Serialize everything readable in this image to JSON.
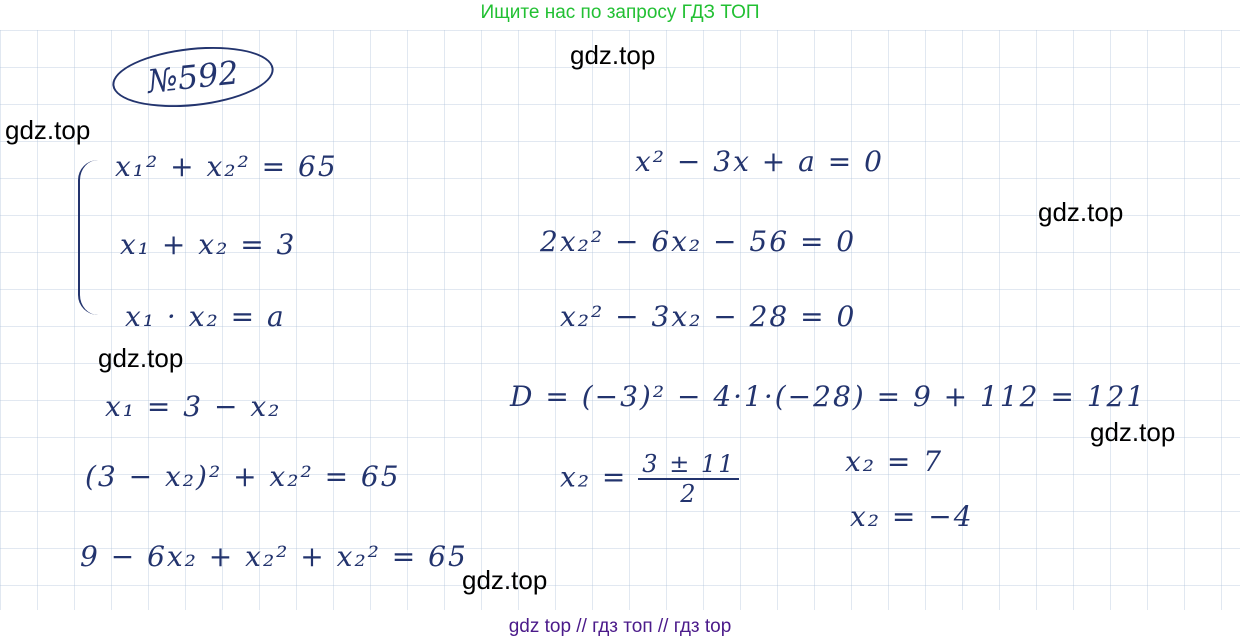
{
  "header": {
    "search_hint": "Ищите нас по запросу ГДЗ ТОП"
  },
  "footer": {
    "links": "gdz top  //  гдз топ  //  гдз top"
  },
  "watermark": "gdz.top",
  "problem": {
    "number": "№592"
  },
  "left": {
    "system": [
      "x₁² + x₂² = 65",
      "x₁ + x₂ = 3",
      "x₁ · x₂ = a"
    ],
    "steps": [
      "x₁ = 3 − x₂",
      "(3 − x₂)² + x₂² = 65",
      "9 − 6x₂ + x₂² + x₂² = 65"
    ]
  },
  "right": {
    "steps": [
      "x² − 3x + a = 0",
      "2x₂² − 6x₂ − 56 = 0",
      "x₂² − 3x₂ − 28 = 0",
      "D = (−3)² − 4·1·(−28) = 9 + 112 = 121"
    ],
    "root_formula_lhs": "x₂ =",
    "root_formula_num": "3 ± 11",
    "root_formula_den": "2",
    "roots": [
      "x₂ = 7",
      "x₂ = −4"
    ]
  },
  "colors": {
    "header": "#22c033",
    "footer": "#4b1a8a",
    "ink": "#23346e"
  }
}
